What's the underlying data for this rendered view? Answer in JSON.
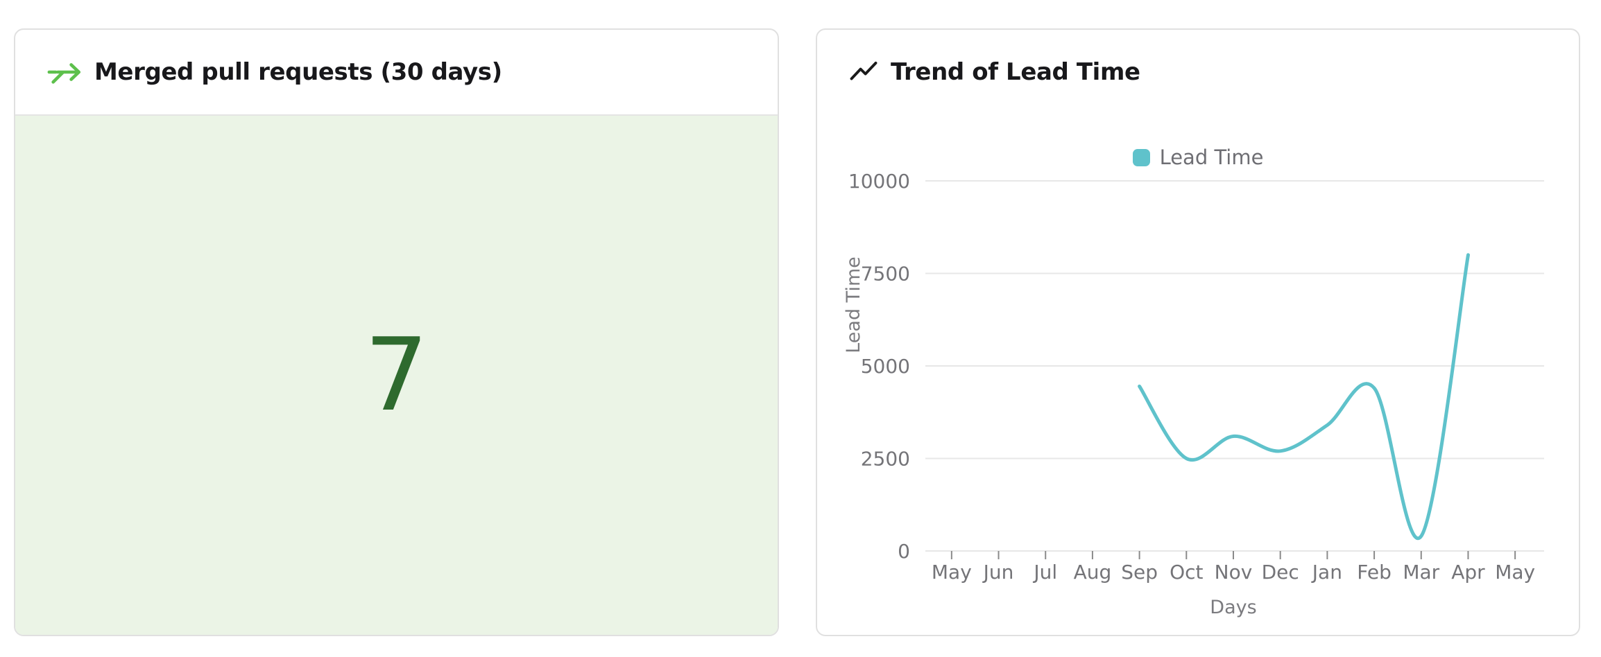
{
  "page": {
    "background": "#ffffff"
  },
  "cards": {
    "merged_pr": {
      "title": "Merged pull requests (30 days)",
      "value": "7",
      "value_color": "#2e6a2e",
      "body_bg": "#ebf4e6",
      "icon": "merge-arrow-icon",
      "icon_color": "#5dc04c"
    },
    "lead_time": {
      "title": "Trend of Lead Time",
      "icon": "trend-line-icon",
      "icon_color": "#1a1a1a"
    }
  },
  "chart_data": {
    "type": "line",
    "title": "Trend of Lead Time",
    "legend": [
      "Lead Time"
    ],
    "legend_position": "top",
    "categories": [
      "May",
      "Jun",
      "Jul",
      "Aug",
      "Sep",
      "Oct",
      "Nov",
      "Dec",
      "Jan",
      "Feb",
      "Mar",
      "Apr",
      "May"
    ],
    "series": [
      {
        "name": "Lead Time",
        "color": "#5fc2cb",
        "smooth": true,
        "values": [
          null,
          null,
          null,
          null,
          4450,
          2500,
          3100,
          2700,
          3400,
          4400,
          400,
          8000,
          null
        ]
      }
    ],
    "xlabel": "Days",
    "ylabel": "Lead Time",
    "ylim": [
      0,
      10000
    ],
    "yticks": [
      0,
      2500,
      5000,
      7500,
      10000
    ],
    "grid": true,
    "gridline_color": "#e7e7e7",
    "tick_color": "#8a8a8a",
    "axis_text_color": "#747478"
  }
}
